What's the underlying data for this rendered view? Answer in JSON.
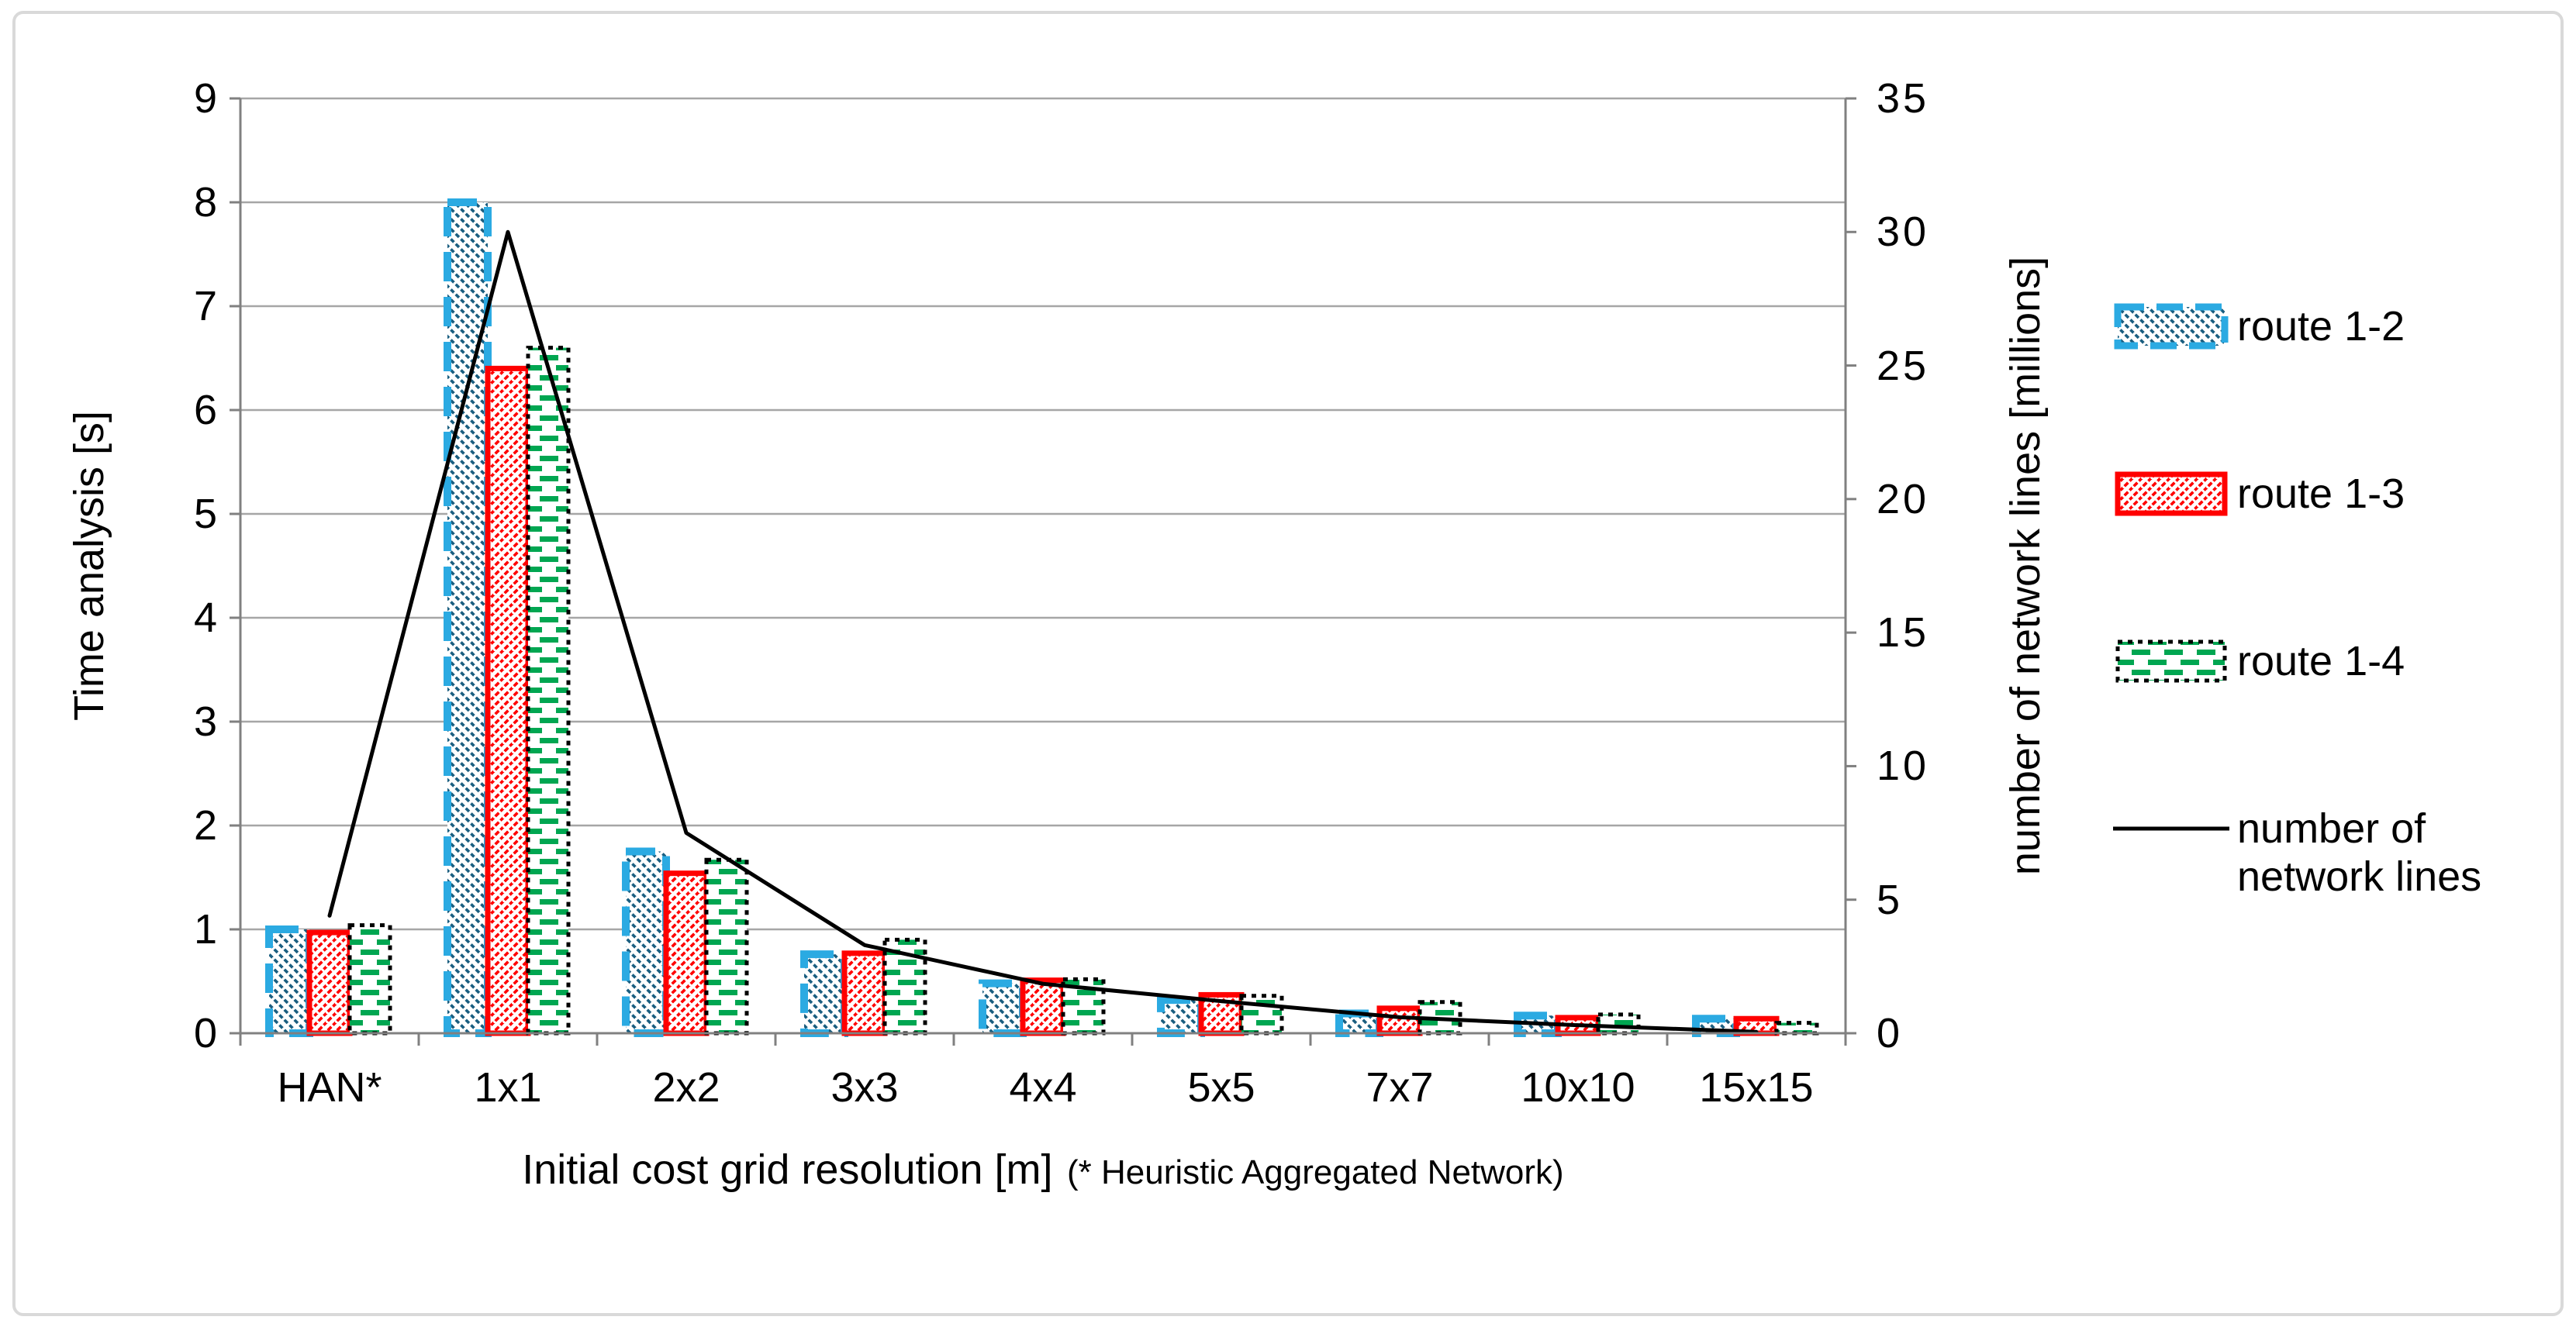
{
  "chart_data": {
    "type": "bar+line",
    "categories": [
      "HAN*",
      "1x1",
      "2x2",
      "3x3",
      "4x4",
      "5x5",
      "7x7",
      "10x10",
      "15x15"
    ],
    "series": [
      {
        "name": "route 1-2",
        "type": "bar",
        "axis": "left",
        "values": [
          1.0,
          8.0,
          1.75,
          0.76,
          0.48,
          0.32,
          0.19,
          0.17,
          0.14
        ]
      },
      {
        "name": "route 1-3",
        "type": "bar",
        "axis": "left",
        "values": [
          0.97,
          6.4,
          1.54,
          0.77,
          0.51,
          0.37,
          0.24,
          0.15,
          0.14
        ]
      },
      {
        "name": "route 1-4",
        "type": "bar",
        "axis": "left",
        "values": [
          1.04,
          6.6,
          1.67,
          0.9,
          0.52,
          0.36,
          0.3,
          0.18,
          0.1
        ]
      },
      {
        "name": "number of network lines",
        "type": "line",
        "axis": "right",
        "values": [
          4.4,
          30,
          7.5,
          3.3,
          1.85,
          1.2,
          0.6,
          0.3,
          0.05
        ]
      }
    ],
    "y_left": {
      "label": "Time analysis [s]",
      "min": 0,
      "max": 9,
      "ticks": [
        0,
        1,
        2,
        3,
        4,
        5,
        6,
        7,
        8,
        9
      ]
    },
    "y_right": {
      "label": "number of network lines [millions]",
      "min": 0,
      "max": 35,
      "ticks": [
        0,
        5,
        10,
        15,
        20,
        25,
        30,
        35
      ]
    },
    "x_axis": {
      "label_main": "Initial cost grid resolution [m]",
      "label_note": "(* Heuristic Aggregated Network)"
    },
    "grid": true,
    "legend_position": "right"
  },
  "legend": {
    "items": [
      {
        "label": "route 1-2",
        "swatch": "blue-hatched-bar"
      },
      {
        "label": "route 1-3",
        "swatch": "red-hatched-bar"
      },
      {
        "label": "route 1-4",
        "swatch": "green-dashed-bar"
      },
      {
        "label_lines": [
          "number of",
          "network lines"
        ],
        "swatch": "black-line"
      }
    ]
  },
  "colors": {
    "route12_border": "#2BAAE2",
    "route12_hatch": "#1A5E80",
    "route13_border": "#FF0000",
    "route13_hatch": "#FF0000",
    "route14_border": "#000000",
    "route14_dash": "#00A651",
    "network_line": "#000000",
    "gridline": "#A6A6A6",
    "axis": "#808080",
    "text": "#000000",
    "background": "#FFFFFF",
    "frame_border": "#D9D9D9"
  }
}
